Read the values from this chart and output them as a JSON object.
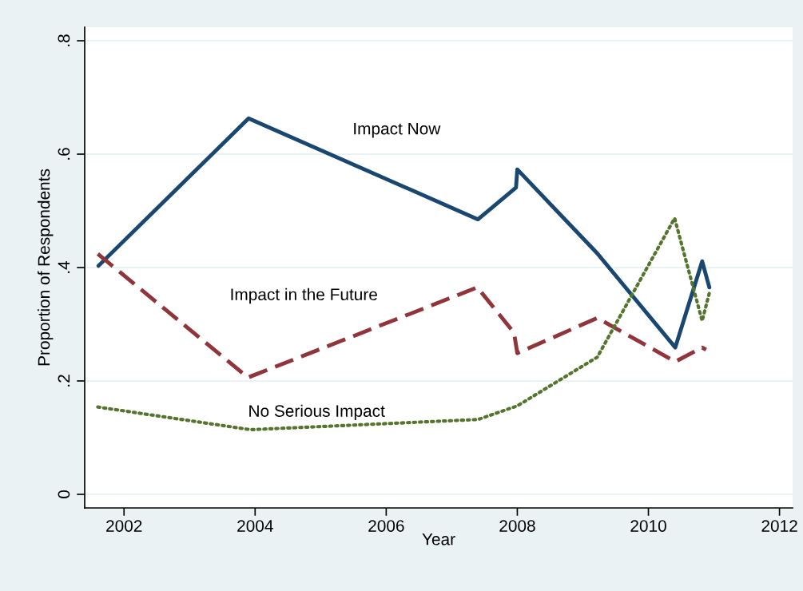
{
  "chart_data": {
    "type": "line",
    "xlabel": "Year",
    "ylabel": "Proportion of Respondents",
    "xlim": [
      2001.4,
      2012.2
    ],
    "xticks": [
      2002,
      2004,
      2006,
      2008,
      2010,
      2012
    ],
    "ylim": [
      -0.024,
      0.824
    ],
    "yticks": [
      {
        "value": 0,
        "label": "0"
      },
      {
        "value": 0.2,
        "label": ".2"
      },
      {
        "value": 0.4,
        "label": ".4"
      },
      {
        "value": 0.6,
        "label": ".6"
      },
      {
        "value": 0.8,
        "label": ".8"
      }
    ],
    "grid": "y",
    "series": [
      {
        "name": "Impact Now",
        "color": "#1a476f",
        "line_style": "solid",
        "x": [
          2001.61,
          2003.9,
          2007.4,
          2007.98,
          2008.0,
          2009.22,
          2010.41,
          2010.82,
          2010.93
        ],
        "values": [
          0.403,
          0.663,
          0.485,
          0.541,
          0.573,
          0.425,
          0.259,
          0.411,
          0.365
        ]
      },
      {
        "name": "Impact in the Future",
        "color": "#90353b",
        "line_style": "dashed",
        "x": [
          2001.6,
          2003.89,
          2007.39,
          2007.95,
          2008.0,
          2009.22,
          2010.41,
          2010.82,
          2010.88
        ],
        "values": [
          0.424,
          0.206,
          0.365,
          0.285,
          0.249,
          0.311,
          0.234,
          0.259,
          0.255
        ]
      },
      {
        "name": "No Serious Impact",
        "color": "#55752f",
        "line_style": "dotted",
        "x": [
          2001.6,
          2003.93,
          2007.4,
          2008.0,
          2009.22,
          2010.4,
          2010.82,
          2010.94
        ],
        "values": [
          0.154,
          0.114,
          0.132,
          0.156,
          0.242,
          0.487,
          0.306,
          0.36
        ]
      }
    ]
  }
}
